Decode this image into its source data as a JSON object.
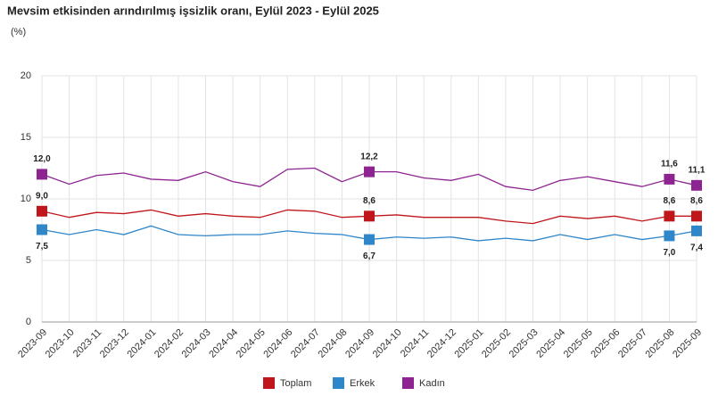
{
  "chart_data": {
    "type": "line",
    "title": "Mevsim etkisinden arındırılmış işsizlik oranı, Eylül 2023 - Eylül 2025",
    "subtitle": "(%)",
    "categories": [
      "2023-09",
      "2023-10",
      "2023-11",
      "2023-12",
      "2024-01",
      "2024-02",
      "2024-03",
      "2024-04",
      "2024-05",
      "2024-06",
      "2024-07",
      "2024-08",
      "2024-09",
      "2024-10",
      "2024-11",
      "2024-12",
      "2025-01",
      "2025-02",
      "2025-03",
      "2025-04",
      "2025-05",
      "2025-06",
      "2025-07",
      "2025-08",
      "2025-09"
    ],
    "series": [
      {
        "name": "Toplam",
        "color": "#c0161b",
        "values": [
          9.0,
          8.5,
          8.9,
          8.8,
          9.1,
          8.6,
          8.8,
          8.6,
          8.5,
          9.1,
          9.0,
          8.5,
          8.6,
          8.7,
          8.5,
          8.5,
          8.5,
          8.2,
          8.0,
          8.6,
          8.4,
          8.6,
          8.2,
          8.6,
          8.6
        ],
        "value_labels": [
          "9,0",
          null,
          null,
          null,
          null,
          null,
          null,
          null,
          null,
          null,
          null,
          null,
          "8,6",
          null,
          null,
          null,
          null,
          null,
          null,
          null,
          null,
          null,
          null,
          "8,6",
          "8,6"
        ]
      },
      {
        "name": "Erkek",
        "color": "#2f86c9",
        "values": [
          7.5,
          7.1,
          7.5,
          7.1,
          7.8,
          7.1,
          7.0,
          7.1,
          7.1,
          7.4,
          7.2,
          7.1,
          6.7,
          6.9,
          6.8,
          6.9,
          6.6,
          6.8,
          6.6,
          7.1,
          6.7,
          7.1,
          6.7,
          7.0,
          7.4
        ],
        "value_labels": [
          "7,5",
          null,
          null,
          null,
          null,
          null,
          null,
          null,
          null,
          null,
          null,
          null,
          "6,7",
          null,
          null,
          null,
          null,
          null,
          null,
          null,
          null,
          null,
          null,
          "7,0",
          "7,4"
        ]
      },
      {
        "name": "Kadın",
        "color": "#8e2491",
        "values": [
          12.0,
          11.2,
          11.9,
          12.1,
          11.6,
          11.5,
          12.2,
          11.4,
          11.0,
          12.4,
          12.5,
          11.4,
          12.2,
          12.2,
          11.7,
          11.5,
          12.0,
          11.0,
          10.7,
          11.5,
          11.8,
          11.4,
          11.0,
          11.6,
          11.1
        ],
        "value_labels": [
          "12,0",
          null,
          null,
          null,
          null,
          null,
          null,
          null,
          null,
          null,
          null,
          null,
          "12,2",
          null,
          null,
          null,
          null,
          null,
          null,
          null,
          null,
          null,
          null,
          "11,6",
          "11,1"
        ]
      }
    ],
    "ylim": [
      0,
      20
    ],
    "yticks": [
      0,
      5,
      10,
      15,
      20
    ],
    "grid": true
  }
}
